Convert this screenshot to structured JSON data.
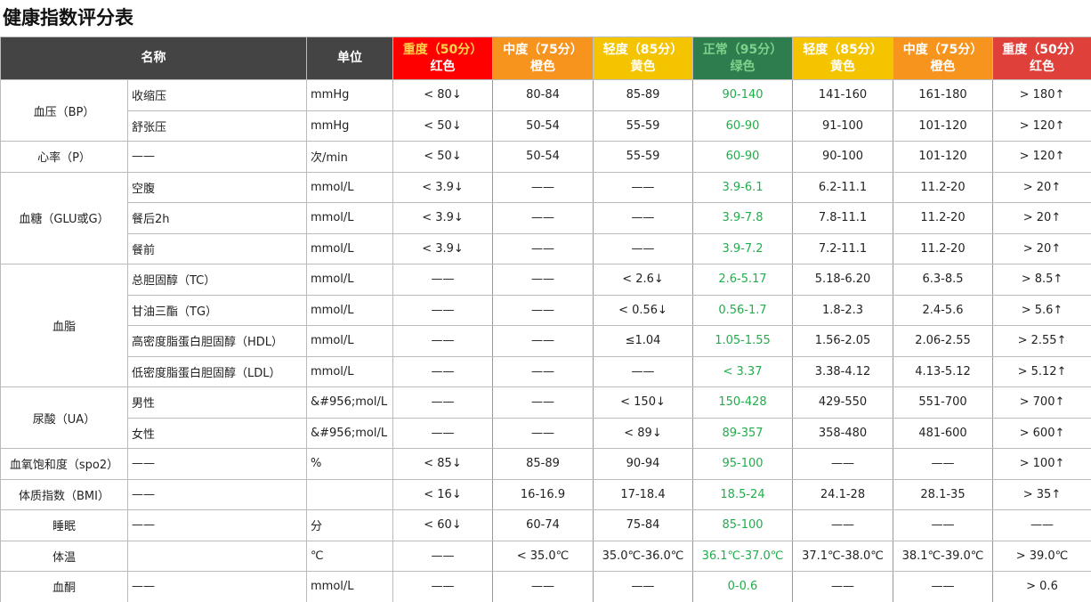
{
  "header": {
    "title": "健康指数评分表"
  },
  "table": {
    "columns": [
      "名称",
      "单位"
    ],
    "grades": [
      {
        "level": "重度（50分）",
        "color": "红色"
      },
      {
        "level": "中度（75分）",
        "color": "橙色"
      },
      {
        "level": "轻度（85分）",
        "color": "黄色"
      },
      {
        "level": "正常（95分）",
        "color": "绿色"
      },
      {
        "level": "轻度（85分）",
        "color": "黄色"
      },
      {
        "level": "中度（75分）",
        "color": "橙色"
      },
      {
        "level": "重度（50分）",
        "color": "红色"
      }
    ],
    "groups": [
      {
        "name": "血压（BP）",
        "rows": [
          {
            "item": "收缩压",
            "unit": "mmHg",
            "values": [
              "< 80↓",
              "80-84",
              "85-89",
              "90-140",
              "141-160",
              "161-180",
              "> 180↑"
            ]
          },
          {
            "item": "舒张压",
            "unit": "mmHg",
            "values": [
              "< 50↓",
              "50-54",
              "55-59",
              "60-90",
              "91-100",
              "101-120",
              "> 120↑"
            ]
          }
        ]
      },
      {
        "name": "心率（P）",
        "rows": [
          {
            "item": "——",
            "unit": "次/min",
            "values": [
              "< 50↓",
              "50-54",
              "55-59",
              "60-90",
              "90-100",
              "101-120",
              "> 120↑"
            ]
          }
        ]
      },
      {
        "name": "血糖（GLU或G）",
        "rows": [
          {
            "item": "空腹",
            "unit": "mmol/L",
            "values": [
              "< 3.9↓",
              "——",
              "——",
              "3.9-6.1",
              "6.2-11.1",
              "11.2-20",
              "> 20↑"
            ]
          },
          {
            "item": "餐后2h",
            "unit": "mmol/L",
            "values": [
              "< 3.9↓",
              "——",
              "——",
              "3.9-7.8",
              "7.8-11.1",
              "11.2-20",
              "> 20↑"
            ]
          },
          {
            "item": "餐前",
            "unit": "mmol/L",
            "values": [
              "< 3.9↓",
              "——",
              "——",
              "3.9-7.2",
              "7.2-11.1",
              "11.2-20",
              "> 20↑"
            ]
          }
        ]
      },
      {
        "name": "血脂",
        "rows": [
          {
            "item": "总胆固醇（TC）",
            "unit": "mmol/L",
            "values": [
              "——",
              "——",
              "< 2.6↓",
              "2.6-5.17",
              "5.18-6.20",
              "6.3-8.5",
              "> 8.5↑"
            ]
          },
          {
            "item": "甘油三酯（TG）",
            "unit": "mmol/L",
            "values": [
              "——",
              "——",
              "< 0.56↓",
              "0.56-1.7",
              "1.8-2.3",
              "2.4-5.6",
              "> 5.6↑"
            ]
          },
          {
            "item": "高密度脂蛋白胆固醇（HDL）",
            "unit": "mmol/L",
            "values": [
              "——",
              "——",
              "≤1.04",
              "1.05-1.55",
              "1.56-2.05",
              "2.06-2.55",
              "> 2.55↑"
            ]
          },
          {
            "item": "低密度脂蛋白胆固醇（LDL）",
            "unit": "mmol/L",
            "values": [
              "——",
              "——",
              "——",
              "< 3.37",
              "3.38-4.12",
              "4.13-5.12",
              "> 5.12↑"
            ]
          }
        ]
      },
      {
        "name": "尿酸（UA）",
        "rows": [
          {
            "item": "男性",
            "unit": "&#956;mol/L",
            "values": [
              "——",
              "——",
              "< 150↓",
              "150-428",
              "429-550",
              "551-700",
              "> 700↑"
            ]
          },
          {
            "item": "女性",
            "unit": "&#956;mol/L",
            "values": [
              "——",
              "——",
              "< 89↓",
              "89-357",
              "358-480",
              "481-600",
              "> 600↑"
            ]
          }
        ]
      },
      {
        "name": "血氧饱和度（spo2）",
        "rows": [
          {
            "item": "——",
            "unit": "%",
            "values": [
              "< 85↓",
              "85-89",
              "90-94",
              "95-100",
              "——",
              "——",
              "> 100↑"
            ]
          }
        ]
      },
      {
        "name": "体质指数（BMI）",
        "rows": [
          {
            "item": "——",
            "unit": null,
            "values": [
              "< 16↓",
              "16-16.9",
              "17-18.4",
              "18.5-24",
              "24.1-28",
              "28.1-35",
              "> 35↑"
            ]
          }
        ]
      },
      {
        "name": "睡眠",
        "rows": [
          {
            "item": "——",
            "unit": "分",
            "values": [
              "< 60↓",
              "60-74",
              "75-84",
              "85-100",
              "——",
              "——",
              "——"
            ]
          }
        ]
      },
      {
        "name": "体温",
        "rows": [
          {
            "item": null,
            "unit": "℃",
            "values": [
              "——",
              "< 35.0℃",
              "35.0℃-36.0℃",
              "36.1℃-37.0℃",
              "37.1℃-38.0℃",
              "38.1℃-39.0℃",
              "> 39.0℃"
            ]
          }
        ]
      },
      {
        "name": "血酮",
        "rows": [
          {
            "item": "——",
            "unit": "mmol/L",
            "values": [
              "——",
              "——",
              "——",
              "0-0.6",
              "——",
              "——",
              "> 0.6"
            ]
          }
        ]
      }
    ]
  }
}
